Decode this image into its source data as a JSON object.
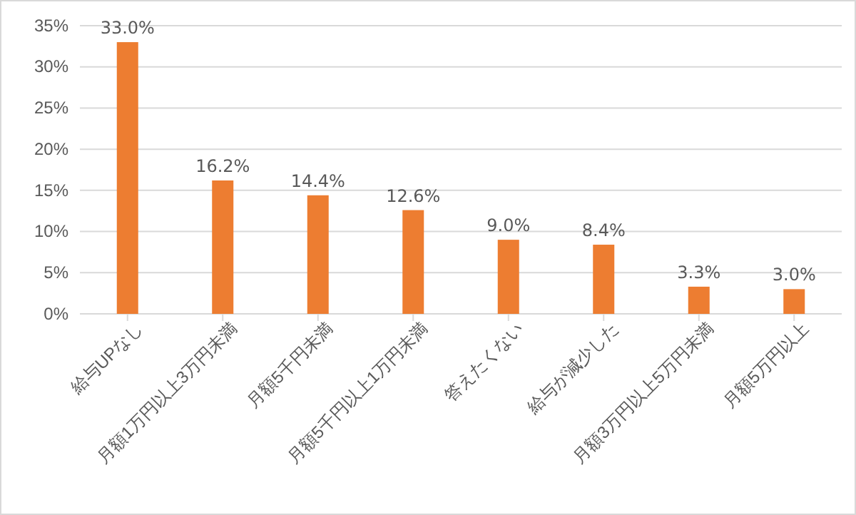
{
  "chart_data": {
    "type": "bar",
    "categories": [
      "給与UPなし",
      "月額1万円以上3万円未満",
      "月額5千円未満",
      "月額5千円以上1万円未満",
      "答えたくない",
      "給与が減少した",
      "月額3万円以上5万円未満",
      "月額5万円以上"
    ],
    "values": [
      33.0,
      16.2,
      14.4,
      12.6,
      9.0,
      8.4,
      3.3,
      3.0
    ],
    "value_labels": [
      "33.0%",
      "16.2%",
      "14.4%",
      "12.6%",
      "9.0%",
      "8.4%",
      "3.3%",
      "3.0%"
    ],
    "color": "#ed7d31",
    "ylim": [
      0,
      35
    ],
    "yticks": [
      {
        "value": 0,
        "label": "0%"
      },
      {
        "value": 5,
        "label": "5%"
      },
      {
        "value": 10,
        "label": "10%"
      },
      {
        "value": 15,
        "label": "15%"
      },
      {
        "value": 20,
        "label": "20%"
      },
      {
        "value": 25,
        "label": "25%"
      },
      {
        "value": 30,
        "label": "30%"
      },
      {
        "value": 35,
        "label": "35%"
      }
    ],
    "grid": "y"
  }
}
